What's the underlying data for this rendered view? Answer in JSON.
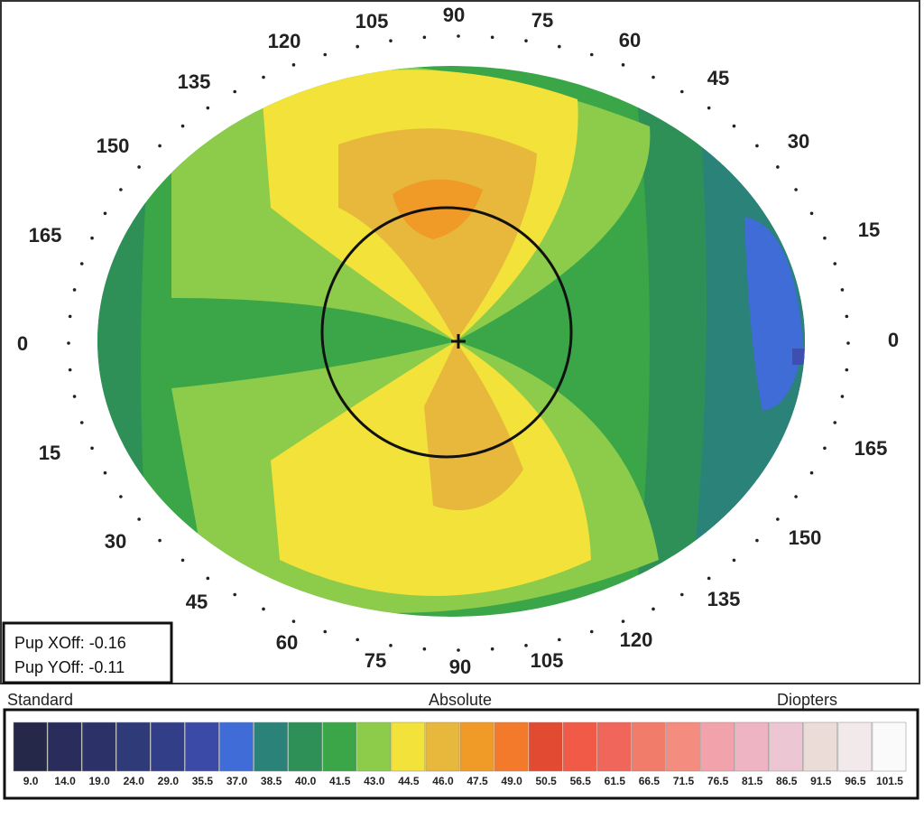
{
  "map": {
    "angle_labels": [
      "135",
      "120",
      "105",
      "90",
      "75",
      "60",
      "45",
      "30",
      "15",
      "0",
      "165",
      "150",
      "135",
      "120",
      "105",
      "90",
      "75",
      "60",
      "45",
      "30",
      "15",
      "0",
      "165",
      "150"
    ],
    "pupil": {
      "x_offset": "Pup XOff: -0.16",
      "y_offset": "Pup YOff: -0.11"
    }
  },
  "scale": {
    "left_title": "Standard",
    "center_title": "Absolute",
    "right_title": "Diopters",
    "items": [
      {
        "label": "9.0",
        "color": "#26284a"
      },
      {
        "label": "14.0",
        "color": "#2a2d5c"
      },
      {
        "label": "19.0",
        "color": "#2c3268"
      },
      {
        "label": "24.0",
        "color": "#2f3a78"
      },
      {
        "label": "29.0",
        "color": "#323f88"
      },
      {
        "label": "35.5",
        "color": "#3a4aa6"
      },
      {
        "label": "37.0",
        "color": "#3f6cd6"
      },
      {
        "label": "38.5",
        "color": "#2a8278"
      },
      {
        "label": "40.0",
        "color": "#2e9056"
      },
      {
        "label": "41.5",
        "color": "#3aa648"
      },
      {
        "label": "43.0",
        "color": "#8ccc4a"
      },
      {
        "label": "44.5",
        "color": "#f2e23a"
      },
      {
        "label": "46.0",
        "color": "#e8b83c"
      },
      {
        "label": "47.5",
        "color": "#f09a28"
      },
      {
        "label": "49.0",
        "color": "#f27a2a"
      },
      {
        "label": "50.5",
        "color": "#e24a32"
      },
      {
        "label": "56.5",
        "color": "#f05a46"
      },
      {
        "label": "61.5",
        "color": "#f0665a"
      },
      {
        "label": "66.5",
        "color": "#f27c6a"
      },
      {
        "label": "71.5",
        "color": "#f48c80"
      },
      {
        "label": "76.5",
        "color": "#f2a2aa"
      },
      {
        "label": "81.5",
        "color": "#eeb4c4"
      },
      {
        "label": "86.5",
        "color": "#ecc6d2"
      },
      {
        "label": "91.5",
        "color": "#ebdcd8"
      },
      {
        "label": "96.5",
        "color": "#f2eaea"
      },
      {
        "label": "101.5",
        "color": "#fafafa"
      }
    ]
  }
}
